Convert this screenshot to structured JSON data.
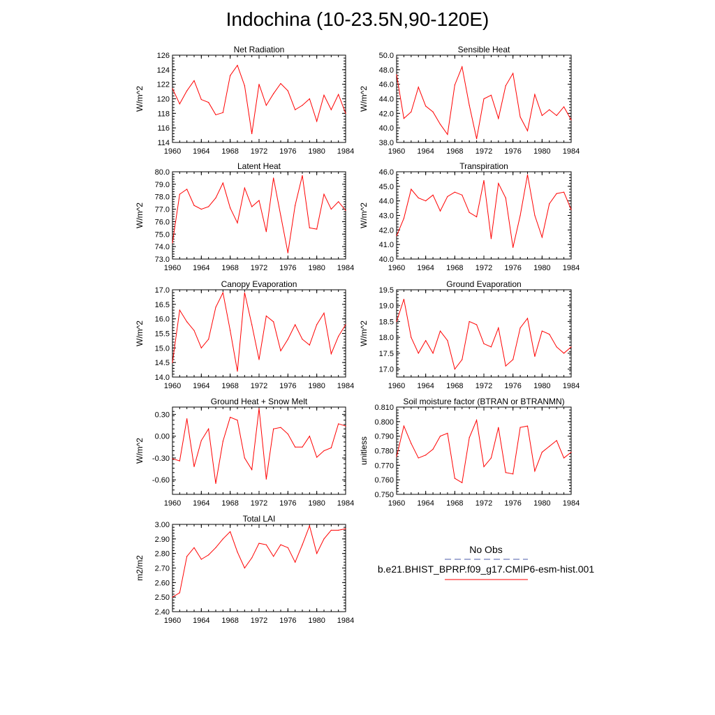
{
  "title": "Indochina (10-23.5N,90-120E)",
  "chart_data": [
    {
      "type": "line",
      "title": "Net Radiation",
      "ylabel": "W/m^2",
      "ylim": [
        114,
        126
      ],
      "yticks": [
        "114",
        "116",
        "118",
        "120",
        "122",
        "124",
        "126"
      ],
      "xlim": [
        1960,
        1984
      ],
      "xticks": [
        "1960",
        "1964",
        "1968",
        "1972",
        "1976",
        "1980",
        "1984"
      ],
      "series": [
        {
          "x": [
            1960,
            1961,
            1962,
            1963,
            1964,
            1965,
            1966,
            1967,
            1968,
            1969,
            1970,
            1971,
            1972,
            1973,
            1974,
            1975,
            1976,
            1977,
            1978,
            1979,
            1980,
            1981,
            1982,
            1983,
            1984
          ],
          "values": [
            121.4,
            119.3,
            121.1,
            122.5,
            119.9,
            119.5,
            117.8,
            118.1,
            123.2,
            124.6,
            121.8,
            115.2,
            122.0,
            119.1,
            120.7,
            122.1,
            121.1,
            118.5,
            119.1,
            120.0,
            116.9,
            120.5,
            118.5,
            120.6,
            118.0
          ]
        }
      ]
    },
    {
      "type": "line",
      "title": "Sensible Heat",
      "ylabel": "W/m^2",
      "ylim": [
        38.0,
        50.0
      ],
      "yticks": [
        "38.0",
        "40.0",
        "42.0",
        "44.0",
        "46.0",
        "48.0",
        "50.0"
      ],
      "xlim": [
        1960,
        1984
      ],
      "xticks": [
        "1960",
        "1964",
        "1968",
        "1972",
        "1976",
        "1980",
        "1984"
      ],
      "series": [
        {
          "x": [
            1960,
            1961,
            1962,
            1963,
            1964,
            1965,
            1966,
            1967,
            1968,
            1969,
            1970,
            1971,
            1972,
            1973,
            1974,
            1975,
            1976,
            1977,
            1978,
            1979,
            1980,
            1981,
            1982,
            1983,
            1984
          ],
          "values": [
            47.3,
            41.3,
            42.2,
            45.6,
            43.0,
            42.2,
            40.5,
            39.1,
            45.9,
            48.4,
            43.1,
            38.5,
            44.0,
            44.5,
            41.3,
            45.8,
            47.5,
            41.5,
            39.6,
            44.6,
            41.7,
            42.5,
            41.7,
            42.9,
            41.1
          ]
        }
      ]
    },
    {
      "type": "line",
      "title": "Latent Heat",
      "ylabel": "W/m^2",
      "ylim": [
        73.0,
        80.0
      ],
      "yticks": [
        "73.0",
        "74.0",
        "75.0",
        "76.0",
        "77.0",
        "78.0",
        "79.0",
        "80.0"
      ],
      "xlim": [
        1960,
        1984
      ],
      "xticks": [
        "1960",
        "1964",
        "1968",
        "1972",
        "1976",
        "1980",
        "1984"
      ],
      "series": [
        {
          "x": [
            1960,
            1961,
            1962,
            1963,
            1964,
            1965,
            1966,
            1967,
            1968,
            1969,
            1970,
            1971,
            1972,
            1973,
            1974,
            1975,
            1976,
            1977,
            1978,
            1979,
            1980,
            1981,
            1982,
            1983,
            1984
          ],
          "values": [
            74.3,
            78.2,
            78.6,
            77.3,
            77.0,
            77.2,
            77.9,
            79.1,
            77.1,
            75.9,
            78.7,
            77.2,
            77.7,
            75.2,
            79.5,
            76.5,
            73.5,
            77.3,
            79.7,
            75.5,
            75.4,
            78.2,
            77.0,
            77.6,
            76.9
          ]
        }
      ]
    },
    {
      "type": "line",
      "title": "Transpiration",
      "ylabel": "W/m^2",
      "ylim": [
        40.0,
        46.0
      ],
      "yticks": [
        "40.0",
        "41.0",
        "42.0",
        "43.0",
        "44.0",
        "45.0",
        "46.0"
      ],
      "xlim": [
        1960,
        1984
      ],
      "xticks": [
        "1960",
        "1964",
        "1968",
        "1972",
        "1976",
        "1980",
        "1984"
      ],
      "series": [
        {
          "x": [
            1960,
            1961,
            1962,
            1963,
            1964,
            1965,
            1966,
            1967,
            1968,
            1969,
            1970,
            1971,
            1972,
            1973,
            1974,
            1975,
            1976,
            1977,
            1978,
            1979,
            1980,
            1981,
            1982,
            1983,
            1984
          ],
          "values": [
            41.6,
            42.8,
            44.8,
            44.2,
            44.0,
            44.4,
            43.3,
            44.3,
            44.6,
            44.4,
            43.2,
            42.9,
            45.4,
            41.4,
            45.2,
            44.2,
            40.8,
            43.0,
            45.8,
            43.0,
            41.5,
            43.8,
            44.5,
            44.6,
            43.4
          ]
        }
      ]
    },
    {
      "type": "line",
      "title": "Canopy Evaporation",
      "ylabel": "W/m^2",
      "ylim": [
        14.0,
        17.0
      ],
      "yticks": [
        "14.0",
        "14.5",
        "15.0",
        "15.5",
        "16.0",
        "16.5",
        "17.0"
      ],
      "xlim": [
        1960,
        1984
      ],
      "xticks": [
        "1960",
        "1964",
        "1968",
        "1972",
        "1976",
        "1980",
        "1984"
      ],
      "series": [
        {
          "x": [
            1960,
            1961,
            1962,
            1963,
            1964,
            1965,
            1966,
            1967,
            1968,
            1969,
            1970,
            1971,
            1972,
            1973,
            1974,
            1975,
            1976,
            1977,
            1978,
            1979,
            1980,
            1981,
            1982,
            1983,
            1984
          ],
          "values": [
            14.5,
            16.3,
            15.9,
            15.6,
            15.0,
            15.3,
            16.4,
            16.9,
            15.6,
            14.2,
            16.9,
            15.8,
            14.6,
            16.1,
            15.9,
            14.9,
            15.3,
            15.8,
            15.3,
            15.1,
            15.8,
            16.2,
            14.8,
            15.4,
            15.8
          ]
        }
      ]
    },
    {
      "type": "line",
      "title": "Ground Evaporation",
      "ylabel": "W/m^2",
      "ylim": [
        16.75,
        19.5
      ],
      "yticks": [
        "17.0",
        "17.5",
        "18.0",
        "18.5",
        "19.0",
        "19.5"
      ],
      "xlim": [
        1960,
        1984
      ],
      "xticks": [
        "1960",
        "1964",
        "1968",
        "1972",
        "1976",
        "1980",
        "1984"
      ],
      "series": [
        {
          "x": [
            1960,
            1961,
            1962,
            1963,
            1964,
            1965,
            1966,
            1967,
            1968,
            1969,
            1970,
            1971,
            1972,
            1973,
            1974,
            1975,
            1976,
            1977,
            1978,
            1979,
            1980,
            1981,
            1982,
            1983,
            1984
          ],
          "values": [
            18.5,
            19.2,
            18.0,
            17.5,
            17.9,
            17.5,
            18.2,
            17.9,
            17.0,
            17.3,
            18.5,
            18.4,
            17.8,
            17.7,
            18.3,
            17.1,
            17.3,
            18.3,
            18.6,
            17.4,
            18.2,
            18.1,
            17.7,
            17.5,
            17.7
          ]
        }
      ]
    },
    {
      "type": "line",
      "title": "Ground Heat + Snow Melt",
      "ylabel": "W/m^2",
      "ylim": [
        -0.8,
        0.4
      ],
      "yticks": [
        "-0.60",
        "-0.30",
        "0.00",
        "0.30"
      ],
      "ytick_values": [
        -0.6,
        -0.3,
        0.0,
        0.3
      ],
      "xlim": [
        1960,
        1984
      ],
      "xticks": [
        "1960",
        "1964",
        "1968",
        "1972",
        "1976",
        "1980",
        "1984"
      ],
      "series": [
        {
          "x": [
            1960,
            1961,
            1962,
            1963,
            1964,
            1965,
            1966,
            1967,
            1968,
            1969,
            1970,
            1971,
            1972,
            1973,
            1974,
            1975,
            1976,
            1977,
            1978,
            1979,
            1980,
            1981,
            1982,
            1983,
            1984
          ],
          "values": [
            -0.31,
            -0.34,
            0.24,
            -0.42,
            -0.06,
            0.1,
            -0.65,
            -0.07,
            0.26,
            0.22,
            -0.3,
            -0.46,
            0.38,
            -0.59,
            0.1,
            0.12,
            0.03,
            -0.15,
            -0.15,
            0.0,
            -0.29,
            -0.2,
            -0.16,
            0.17,
            0.14
          ]
        }
      ]
    },
    {
      "type": "line",
      "title": "Soil moisture factor (BTRAN or BTRANMN)",
      "ylabel": "unitless",
      "ylim": [
        0.75,
        0.81
      ],
      "yticks": [
        "0.750",
        "0.760",
        "0.770",
        "0.780",
        "0.790",
        "0.800",
        "0.810"
      ],
      "xlim": [
        1960,
        1984
      ],
      "xticks": [
        "1960",
        "1964",
        "1968",
        "1972",
        "1976",
        "1980",
        "1984"
      ],
      "series": [
        {
          "x": [
            1960,
            1961,
            1962,
            1963,
            1964,
            1965,
            1966,
            1967,
            1968,
            1969,
            1970,
            1971,
            1972,
            1973,
            1974,
            1975,
            1976,
            1977,
            1978,
            1979,
            1980,
            1981,
            1982,
            1983,
            1984
          ],
          "values": [
            0.776,
            0.797,
            0.785,
            0.775,
            0.777,
            0.781,
            0.79,
            0.792,
            0.761,
            0.758,
            0.789,
            0.801,
            0.769,
            0.775,
            0.796,
            0.765,
            0.764,
            0.796,
            0.797,
            0.766,
            0.779,
            0.783,
            0.787,
            0.775,
            0.779
          ]
        }
      ]
    },
    {
      "type": "line",
      "title": "Total LAI",
      "ylabel": "m2/m2",
      "ylim": [
        2.4,
        3.0
      ],
      "yticks": [
        "2.40",
        "2.50",
        "2.60",
        "2.70",
        "2.80",
        "2.90",
        "3.00"
      ],
      "xlim": [
        1960,
        1984
      ],
      "xticks": [
        "1960",
        "1964",
        "1968",
        "1972",
        "1976",
        "1980",
        "1984"
      ],
      "series": [
        {
          "x": [
            1960,
            1961,
            1962,
            1963,
            1964,
            1965,
            1966,
            1967,
            1968,
            1969,
            1970,
            1971,
            1972,
            1973,
            1974,
            1975,
            1976,
            1977,
            1978,
            1979,
            1980,
            1981,
            1982,
            1983,
            1984
          ],
          "values": [
            2.5,
            2.53,
            2.78,
            2.84,
            2.76,
            2.79,
            2.84,
            2.9,
            2.95,
            2.81,
            2.7,
            2.77,
            2.87,
            2.86,
            2.78,
            2.86,
            2.84,
            2.74,
            2.86,
            2.99,
            2.8,
            2.9,
            2.96,
            2.96,
            2.97
          ]
        }
      ]
    }
  ],
  "legend": {
    "items": [
      {
        "label": "No Obs",
        "style": "dashed",
        "color": "#4a5aa8"
      },
      {
        "label": "b.e21.BHIST_BPRP.f09_g17.CMIP6-esm-hist.001",
        "style": "solid",
        "color": "#ff0000"
      }
    ]
  },
  "colors": {
    "series": "#ff0000",
    "axes": "#000000",
    "background": "#ffffff"
  }
}
